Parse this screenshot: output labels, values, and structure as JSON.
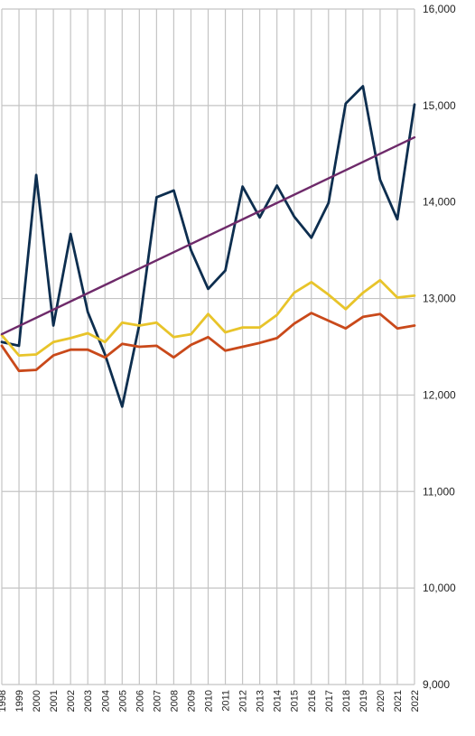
{
  "chart_data": {
    "type": "line",
    "x": [
      "1998",
      "1999",
      "2000",
      "2001",
      "2002",
      "2003",
      "2004",
      "2005",
      "2006",
      "2007",
      "2008",
      "2009",
      "2010",
      "2011",
      "2012",
      "2013",
      "2014",
      "2015",
      "2016",
      "2017",
      "2018",
      "2019",
      "2020",
      "2021",
      "2022"
    ],
    "ylim": [
      9000,
      16000
    ],
    "yticks": [
      9000,
      10000,
      11000,
      12000,
      13000,
      14000,
      15000,
      16000
    ],
    "ytick_labels": [
      "9,000",
      "10,000",
      "11,000",
      "12,000",
      "13,000",
      "14,000",
      "15,000",
      "16,000"
    ],
    "y_axis_position": "right",
    "grid": true,
    "legend": "none",
    "series": [
      {
        "color": "#0d2e4f",
        "values": [
          12550,
          12510,
          14280,
          12720,
          13670,
          12860,
          12420,
          11880,
          12730,
          14050,
          14120,
          13500,
          13100,
          13290,
          14160,
          13840,
          14170,
          13850,
          13630,
          13990,
          15020,
          15200,
          14230,
          13820,
          15010
        ]
      },
      {
        "color": "#e8c42a",
        "values": [
          12620,
          12410,
          12420,
          12550,
          12590,
          12640,
          12550,
          12750,
          12720,
          12750,
          12600,
          12630,
          12840,
          12650,
          12700,
          12700,
          12830,
          13060,
          13170,
          13040,
          12890,
          13060,
          13190,
          13010,
          13030
        ]
      },
      {
        "color": "#c9491a",
        "values": [
          12510,
          12250,
          12260,
          12410,
          12470,
          12470,
          12390,
          12530,
          12500,
          12510,
          12390,
          12520,
          12600,
          12460,
          12500,
          12540,
          12590,
          12740,
          12850,
          12770,
          12690,
          12810,
          12840,
          12690,
          12720
        ]
      },
      {
        "color": "#6e2a6a",
        "type": "trendline",
        "values": [
          12630,
          14670
        ],
        "x": [
          "1998",
          "2022"
        ]
      }
    ]
  }
}
